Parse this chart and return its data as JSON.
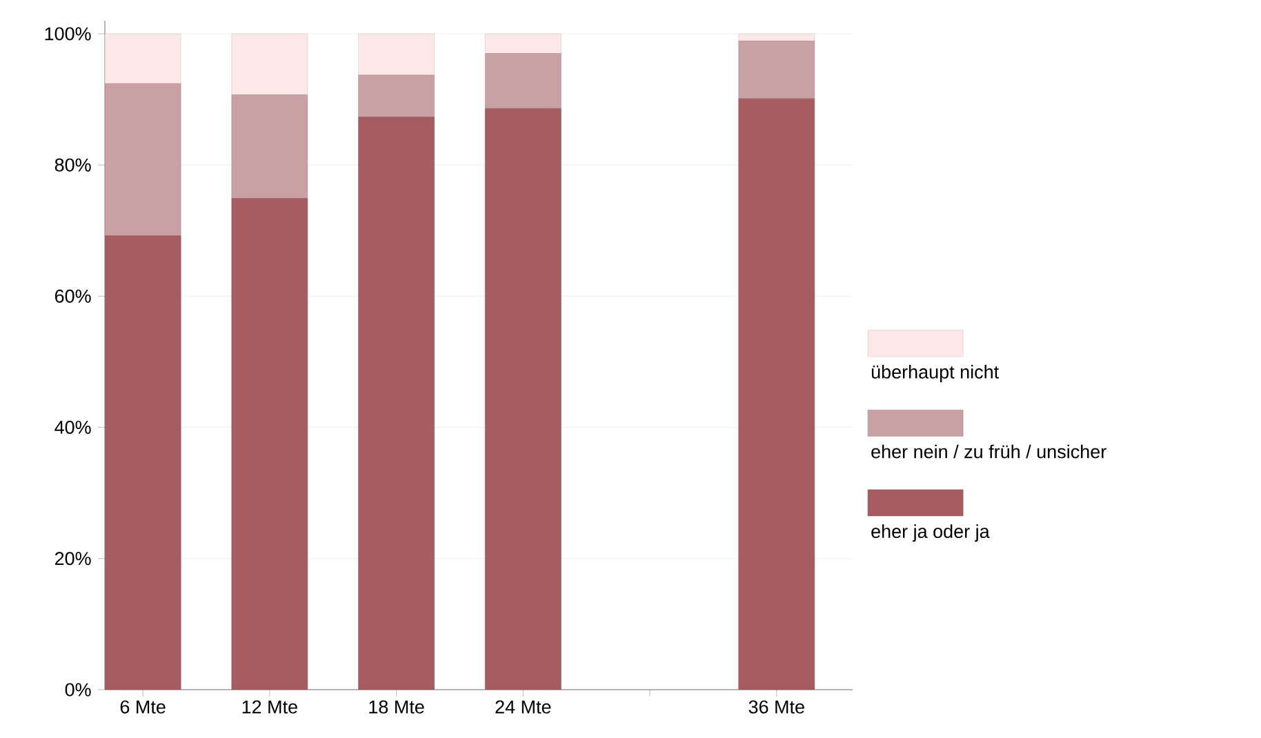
{
  "chart_data": {
    "type": "bar",
    "stacked": true,
    "categories": [
      "6 Mte",
      "12 Mte",
      "18 Mte",
      "24 Mte",
      null,
      "36 Mte"
    ],
    "series": [
      {
        "name": "eher ja oder ja",
        "color": "#a65d62",
        "values": [
          69.2,
          74.9,
          87.3,
          88.6,
          null,
          90.1
        ]
      },
      {
        "name": "eher nein / zu früh / unsicher",
        "color": "#c9a0a3",
        "values": [
          23.2,
          15.8,
          6.4,
          8.4,
          null,
          8.8
        ]
      },
      {
        "name": "überhaupt nicht",
        "color": "#fde8e8",
        "values": [
          7.6,
          9.3,
          6.3,
          3.0,
          null,
          1.1
        ]
      }
    ],
    "ylim": [
      0,
      102
    ],
    "yticks": [
      {
        "value": 0,
        "label": "0%"
      },
      {
        "value": 20,
        "label": "20%"
      },
      {
        "value": 40,
        "label": "40%"
      },
      {
        "value": 60,
        "label": "60%"
      },
      {
        "value": 80,
        "label": "80%"
      },
      {
        "value": 100,
        "label": "100%"
      }
    ],
    "grid": "y",
    "legend": "right"
  }
}
